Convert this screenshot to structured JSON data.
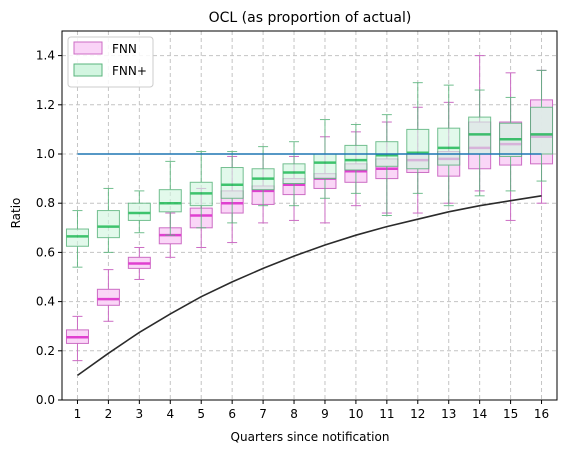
{
  "chart_data": {
    "type": "box",
    "title": "OCL (as proportion of actual)",
    "xlabel": "Quarters since notification",
    "ylabel": "Ratio",
    "ylim": [
      0,
      1.5
    ],
    "yticks": [
      "0.0",
      "0.2",
      "0.4",
      "0.6",
      "0.8",
      "1.0",
      "1.2",
      "1.4"
    ],
    "categories": [
      "1",
      "2",
      "3",
      "4",
      "5",
      "6",
      "7",
      "8",
      "9",
      "10",
      "11",
      "12",
      "13",
      "14",
      "15",
      "16"
    ],
    "grid": true,
    "legend": {
      "placement": "top-left",
      "entries": [
        "FNN",
        "FNN+"
      ]
    },
    "colors": {
      "fnn_fill": "#fad4f7",
      "fnn_edge": "#cc6cc4",
      "fnn_median": "#e040d0",
      "fnnplus_fill": "#d2f5e0",
      "fnnplus_edge": "#5ab47c",
      "fnnplus_median": "#1db954",
      "reference_line": "#1f77b4",
      "curve": "#2b2b2b"
    },
    "series": [
      {
        "name": "FNN",
        "boxes": [
          {
            "wlo": 0.16,
            "q1": 0.23,
            "med": 0.255,
            "q3": 0.285,
            "whi": 0.34
          },
          {
            "wlo": 0.32,
            "q1": 0.385,
            "med": 0.41,
            "q3": 0.45,
            "whi": 0.53
          },
          {
            "wlo": 0.49,
            "q1": 0.535,
            "med": 0.555,
            "q3": 0.58,
            "whi": 0.62
          },
          {
            "wlo": 0.58,
            "q1": 0.635,
            "med": 0.67,
            "q3": 0.7,
            "whi": 0.76
          },
          {
            "wlo": 0.62,
            "q1": 0.7,
            "med": 0.75,
            "q3": 0.78,
            "whi": 0.86
          },
          {
            "wlo": 0.64,
            "q1": 0.76,
            "med": 0.8,
            "q3": 0.85,
            "whi": 0.99
          },
          {
            "wlo": 0.72,
            "q1": 0.795,
            "med": 0.85,
            "q3": 0.87,
            "whi": 1.0
          },
          {
            "wlo": 0.73,
            "q1": 0.835,
            "med": 0.875,
            "q3": 0.9,
            "whi": 0.99
          },
          {
            "wlo": 0.72,
            "q1": 0.86,
            "med": 0.9,
            "q3": 0.92,
            "whi": 1.07
          },
          {
            "wlo": 0.79,
            "q1": 0.885,
            "med": 0.93,
            "q3": 0.96,
            "whi": 1.09
          },
          {
            "wlo": 0.76,
            "q1": 0.9,
            "med": 0.94,
            "q3": 0.98,
            "whi": 1.13
          },
          {
            "wlo": 0.76,
            "q1": 0.925,
            "med": 0.975,
            "q3": 1.0,
            "whi": 1.19
          },
          {
            "wlo": 0.8,
            "q1": 0.91,
            "med": 0.98,
            "q3": 1.01,
            "whi": 1.21
          },
          {
            "wlo": 0.85,
            "q1": 0.94,
            "med": 1.025,
            "q3": 1.13,
            "whi": 1.4
          },
          {
            "wlo": 0.73,
            "q1": 0.955,
            "med": 1.04,
            "q3": 1.13,
            "whi": 1.33
          },
          {
            "wlo": 0.8,
            "q1": 0.96,
            "med": 1.07,
            "q3": 1.22,
            "whi": 1.34
          }
        ]
      },
      {
        "name": "FNN+",
        "boxes": [
          {
            "wlo": 0.54,
            "q1": 0.625,
            "med": 0.665,
            "q3": 0.695,
            "whi": 0.77
          },
          {
            "wlo": 0.6,
            "q1": 0.66,
            "med": 0.705,
            "q3": 0.77,
            "whi": 0.86
          },
          {
            "wlo": 0.68,
            "q1": 0.73,
            "med": 0.76,
            "q3": 0.8,
            "whi": 0.85
          },
          {
            "wlo": 0.67,
            "q1": 0.765,
            "med": 0.8,
            "q3": 0.855,
            "whi": 0.97
          },
          {
            "wlo": 0.7,
            "q1": 0.79,
            "med": 0.84,
            "q3": 0.885,
            "whi": 1.01
          },
          {
            "wlo": 0.72,
            "q1": 0.82,
            "med": 0.875,
            "q3": 0.945,
            "whi": 1.01
          },
          {
            "wlo": 0.79,
            "q1": 0.855,
            "med": 0.9,
            "q3": 0.94,
            "whi": 1.03
          },
          {
            "wlo": 0.79,
            "q1": 0.88,
            "med": 0.925,
            "q3": 0.96,
            "whi": 1.05
          },
          {
            "wlo": 0.82,
            "q1": 0.9,
            "med": 0.965,
            "q3": 1.0,
            "whi": 1.14
          },
          {
            "wlo": 0.84,
            "q1": 0.935,
            "med": 0.975,
            "q3": 1.035,
            "whi": 1.12
          },
          {
            "wlo": 0.75,
            "q1": 0.95,
            "med": 0.995,
            "q3": 1.05,
            "whi": 1.16
          },
          {
            "wlo": 0.84,
            "q1": 0.94,
            "med": 1.005,
            "q3": 1.1,
            "whi": 1.29
          },
          {
            "wlo": 0.79,
            "q1": 0.955,
            "med": 1.025,
            "q3": 1.105,
            "whi": 1.28
          },
          {
            "wlo": 0.83,
            "q1": 1.0,
            "med": 1.08,
            "q3": 1.15,
            "whi": 1.26
          },
          {
            "wlo": 0.85,
            "q1": 0.99,
            "med": 1.06,
            "q3": 1.125,
            "whi": 1.23
          },
          {
            "wlo": 0.89,
            "q1": 1.0,
            "med": 1.08,
            "q3": 1.19,
            "whi": 1.34
          }
        ]
      }
    ],
    "reference_line": {
      "y": 1.0,
      "x_from": 1,
      "x_to": 16
    },
    "curve": {
      "x": [
        1,
        2,
        3,
        4,
        5,
        6,
        7,
        8,
        9,
        10,
        11,
        12,
        13,
        14,
        15,
        16
      ],
      "y": [
        0.1,
        0.19,
        0.275,
        0.35,
        0.42,
        0.48,
        0.535,
        0.585,
        0.63,
        0.67,
        0.705,
        0.735,
        0.765,
        0.79,
        0.81,
        0.83
      ]
    }
  }
}
